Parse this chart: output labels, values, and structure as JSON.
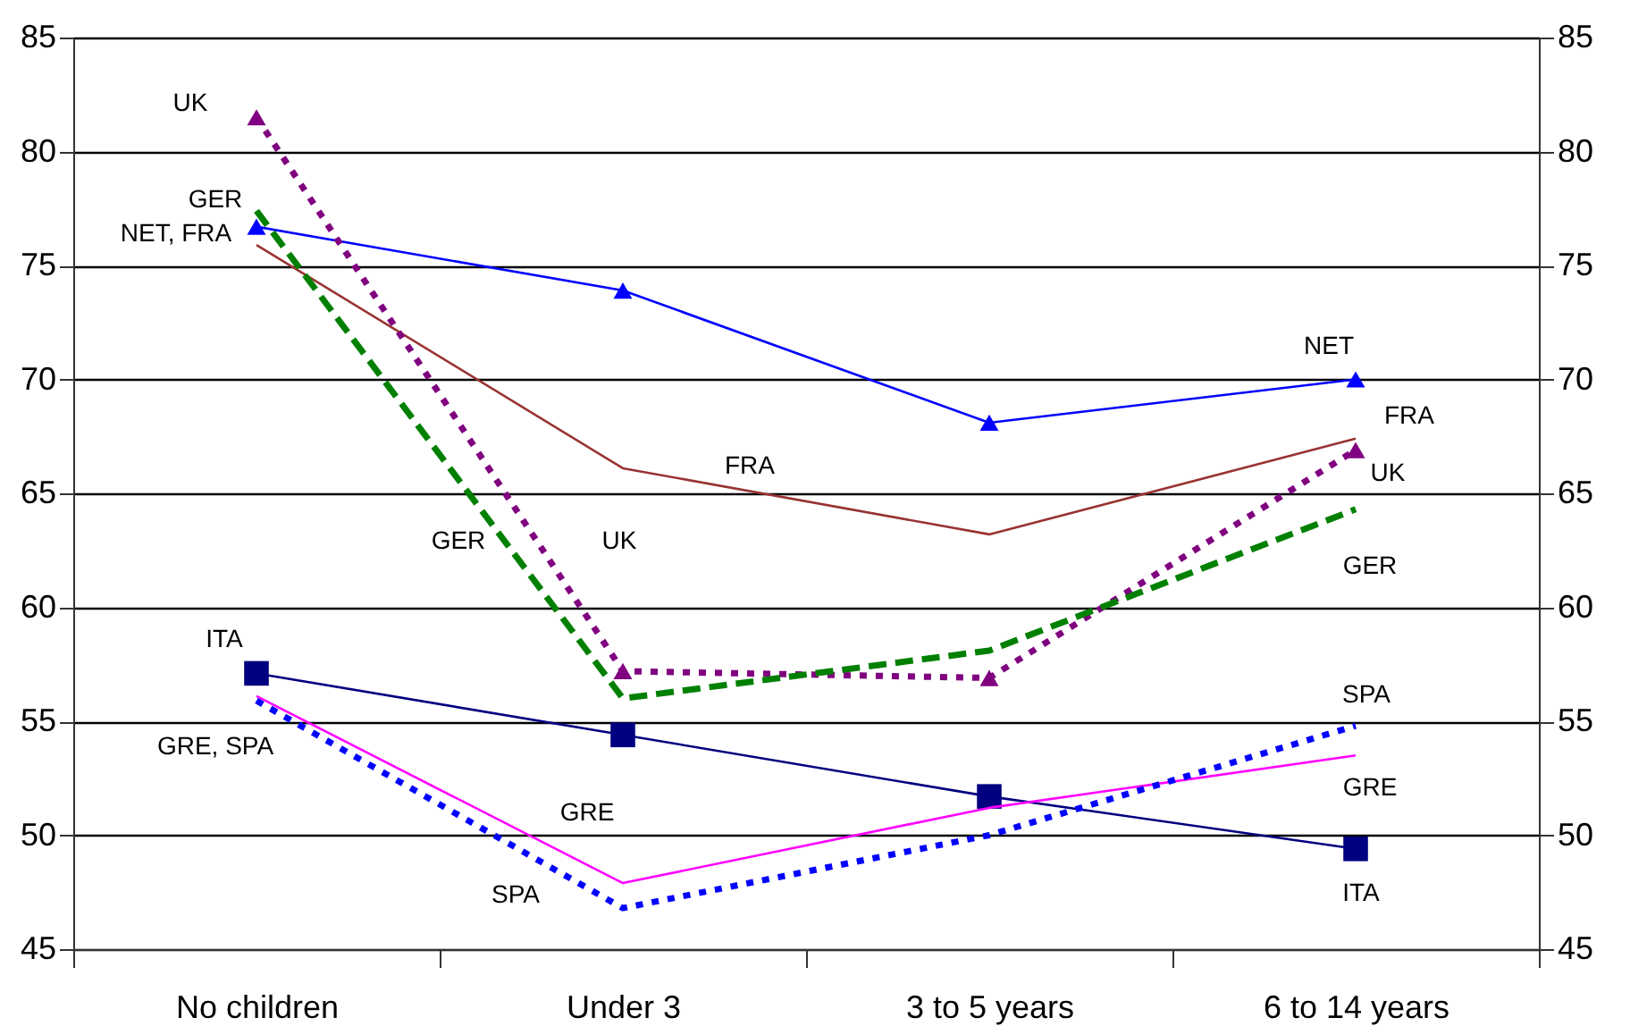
{
  "chart_data": {
    "type": "line",
    "categories": [
      "No children",
      "Under 3",
      "3 to 5 years",
      "6 to 14 years"
    ],
    "series": [
      {
        "color": "#0000ff",
        "values": [
          76.7,
          73.9,
          68.1,
          70.0
        ],
        "marker": "triangle",
        "line_style": "solid"
      },
      {
        "color": "#993333",
        "values": [
          75.9,
          66.1,
          63.2,
          67.4
        ],
        "marker": "none",
        "line_style": "solid"
      },
      {
        "color": "#800080",
        "values": [
          81.5,
          57.2,
          56.9,
          66.9
        ],
        "marker": "triangle",
        "line_style": "dotted"
      },
      {
        "color": "#008000",
        "values": [
          77.4,
          56.0,
          58.1,
          64.3
        ],
        "marker": "none",
        "line_style": "dashed"
      },
      {
        "color": "#000080",
        "values": [
          57.1,
          54.4,
          51.7,
          49.4
        ],
        "marker": "square",
        "line_style": "solid"
      },
      {
        "color": "#ff00ff",
        "values": [
          56.1,
          47.9,
          51.2,
          53.5
        ],
        "marker": "none",
        "line_style": "solid"
      },
      {
        "color": "#0000ff",
        "values": [
          55.9,
          46.8,
          50.0,
          54.8
        ],
        "marker": "none",
        "line_style": "dotted"
      }
    ],
    "annotations": [
      "UK",
      "GER",
      "NET, FRA",
      "ITA",
      "GRE, SPA",
      "GER",
      "UK",
      "FRA",
      "GRE",
      "SPA",
      "NET",
      "FRA",
      "UK",
      "GER",
      "SPA",
      "GRE",
      "ITA"
    ],
    "ylim": [
      45,
      85
    ],
    "yticks": [
      45,
      50,
      55,
      60,
      65,
      70,
      75,
      80,
      85
    ],
    "y2lim": [
      45,
      85
    ],
    "y2ticks": [
      45,
      50,
      55,
      60,
      65,
      70,
      75,
      80,
      85
    ],
    "grid": "y"
  }
}
